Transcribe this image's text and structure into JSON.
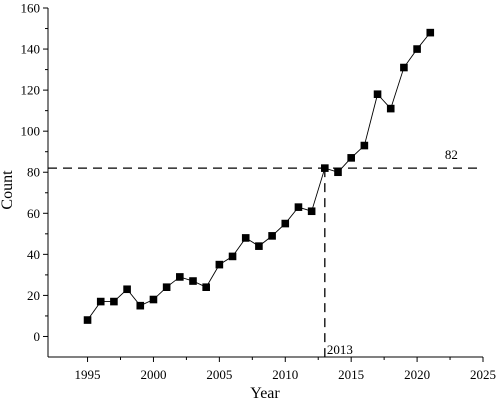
{
  "chart_data": {
    "type": "line",
    "xlabel": "Year",
    "ylabel": "Count",
    "xlim": [
      1992,
      2025
    ],
    "ylim": [
      -10,
      160
    ],
    "x_ticks": [
      1995,
      2000,
      2005,
      2010,
      2015,
      2020,
      2025
    ],
    "y_ticks": [
      0,
      20,
      40,
      60,
      80,
      100,
      120,
      140,
      160
    ],
    "x_tick_labels": [
      "1995",
      "2000",
      "2005",
      "2010",
      "2015",
      "2020",
      "2025"
    ],
    "y_tick_labels": [
      "0",
      "20",
      "40",
      "60",
      "80",
      "100",
      "120",
      "140",
      "160"
    ],
    "grid": false,
    "marker": "square",
    "series": [
      {
        "x": [
          1995,
          1996,
          1997,
          1998,
          1999,
          2000,
          2001,
          2002,
          2003,
          2004,
          2005,
          2006,
          2007,
          2008,
          2009,
          2010,
          2011,
          2012,
          2013,
          2014,
          2015,
          2016,
          2017,
          2018,
          2019,
          2020,
          2021
        ],
        "values": [
          8,
          17,
          17,
          23,
          15,
          18,
          24,
          29,
          27,
          24,
          35,
          39,
          48,
          44,
          49,
          55,
          63,
          61,
          82,
          80,
          87,
          93,
          118,
          111,
          131,
          140,
          148
        ]
      }
    ],
    "reference_lines": [
      {
        "orientation": "horizontal",
        "value": 82,
        "label": "82"
      },
      {
        "orientation": "vertical",
        "value": 2013,
        "label": "2013"
      }
    ]
  }
}
